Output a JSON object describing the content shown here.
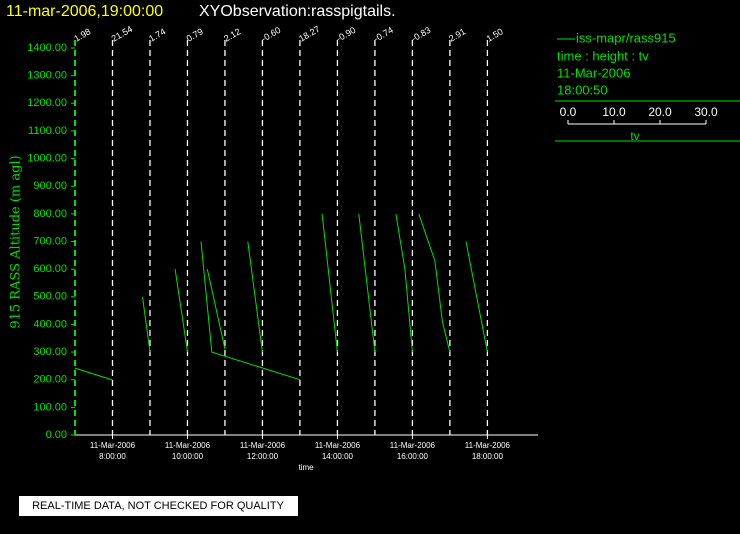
{
  "chart_data": {
    "type": "line",
    "title_time": "11-mar-2006,19:00:00",
    "title": "XYObservation:rasspigtails.",
    "ylabel": "915 RASS Altitude (m agl)",
    "xlabel": "time",
    "xlim": [
      7,
      19.35
    ],
    "ylim": [
      0,
      1400
    ],
    "yticks": [
      {
        "value": 0,
        "label": "0.00"
      },
      {
        "value": 100,
        "label": "100.00"
      },
      {
        "value": 200,
        "label": "200.00"
      },
      {
        "value": 300,
        "label": "300.00"
      },
      {
        "value": 400,
        "label": "400.00"
      },
      {
        "value": 500,
        "label": "500.00"
      },
      {
        "value": 600,
        "label": "600.00"
      },
      {
        "value": 700,
        "label": "700.00"
      },
      {
        "value": 800,
        "label": "800.00"
      },
      {
        "value": 900,
        "label": "900.00"
      },
      {
        "value": 1000,
        "label": "1000.00"
      },
      {
        "value": 1100,
        "label": "1100.00"
      },
      {
        "value": 1200,
        "label": "1200.00"
      },
      {
        "value": 1300,
        "label": "1300.00"
      },
      {
        "value": 1400,
        "label": "1400.00"
      }
    ],
    "xticks": [
      {
        "value": 8,
        "label": "8:00:00"
      },
      {
        "value": 10,
        "label": "10:00:00"
      },
      {
        "value": 12,
        "label": "12:00:00"
      },
      {
        "value": 14,
        "label": "14:00:00"
      },
      {
        "value": 16,
        "label": "16:00:00"
      },
      {
        "value": 18,
        "label": "18:00:00"
      }
    ],
    "xtick_dates": [
      "11-Mar-2006",
      "11-Mar-2006",
      "11-Mar-2006",
      "11-Mar-2006",
      "11-Mar-2006",
      "11-Mar-2006"
    ],
    "markers": {
      "x": [
        7,
        8,
        9,
        10,
        11,
        12,
        13,
        14,
        15,
        16,
        17,
        18
      ],
      "values": [
        1.98,
        21.54,
        1.74,
        0.79,
        2.12,
        -0.6,
        18.27,
        -0.9,
        -0.74,
        -0.83,
        2.91,
        1.5
      ],
      "value_labels": [
        "1.98",
        "21.54",
        "1.74",
        "0.79",
        "2.12",
        "-0.60",
        "18.27",
        "-0.90",
        "-0.74",
        "-0.83",
        "2.91",
        "1.50"
      ]
    },
    "series": [
      {
        "name": "iss-mapr/rass915",
        "color": "#00e000",
        "x": [
          7.0,
          8.0,
          null,
          8.8,
          9.0,
          null,
          9.67,
          10.0,
          null,
          10.36,
          10.65,
          13.0,
          null,
          10.53,
          11.0,
          null,
          11.61,
          12.0,
          null,
          13.59,
          14.0,
          null,
          14.57,
          15.0,
          null,
          15.56,
          15.8,
          16.0,
          null,
          16.17,
          16.6,
          16.8,
          17.0,
          null,
          17.43,
          18.0
        ],
        "values": [
          242,
          199,
          null,
          500,
          300,
          null,
          600,
          300,
          null,
          700,
          300,
          200,
          null,
          600,
          310,
          null,
          700,
          300,
          null,
          800,
          300,
          null,
          800,
          300,
          null,
          800,
          600,
          300,
          null,
          800,
          630,
          410,
          300,
          null,
          700,
          300
        ]
      }
    ],
    "legend": {
      "line2": "time : height : tv",
      "line3": "11-Mar-2006",
      "line4": "18:00:50",
      "scale_lim": [
        0,
        30
      ],
      "scale_ticks": [
        {
          "value": 0,
          "label": "0.0"
        },
        {
          "value": 10,
          "label": "10.0"
        },
        {
          "value": 20,
          "label": "20.0"
        },
        {
          "value": 30,
          "label": "30.0"
        }
      ],
      "scale_label": "tv"
    },
    "footer": "REAL-TIME DATA, NOT CHECKED FOR QUALITY"
  }
}
